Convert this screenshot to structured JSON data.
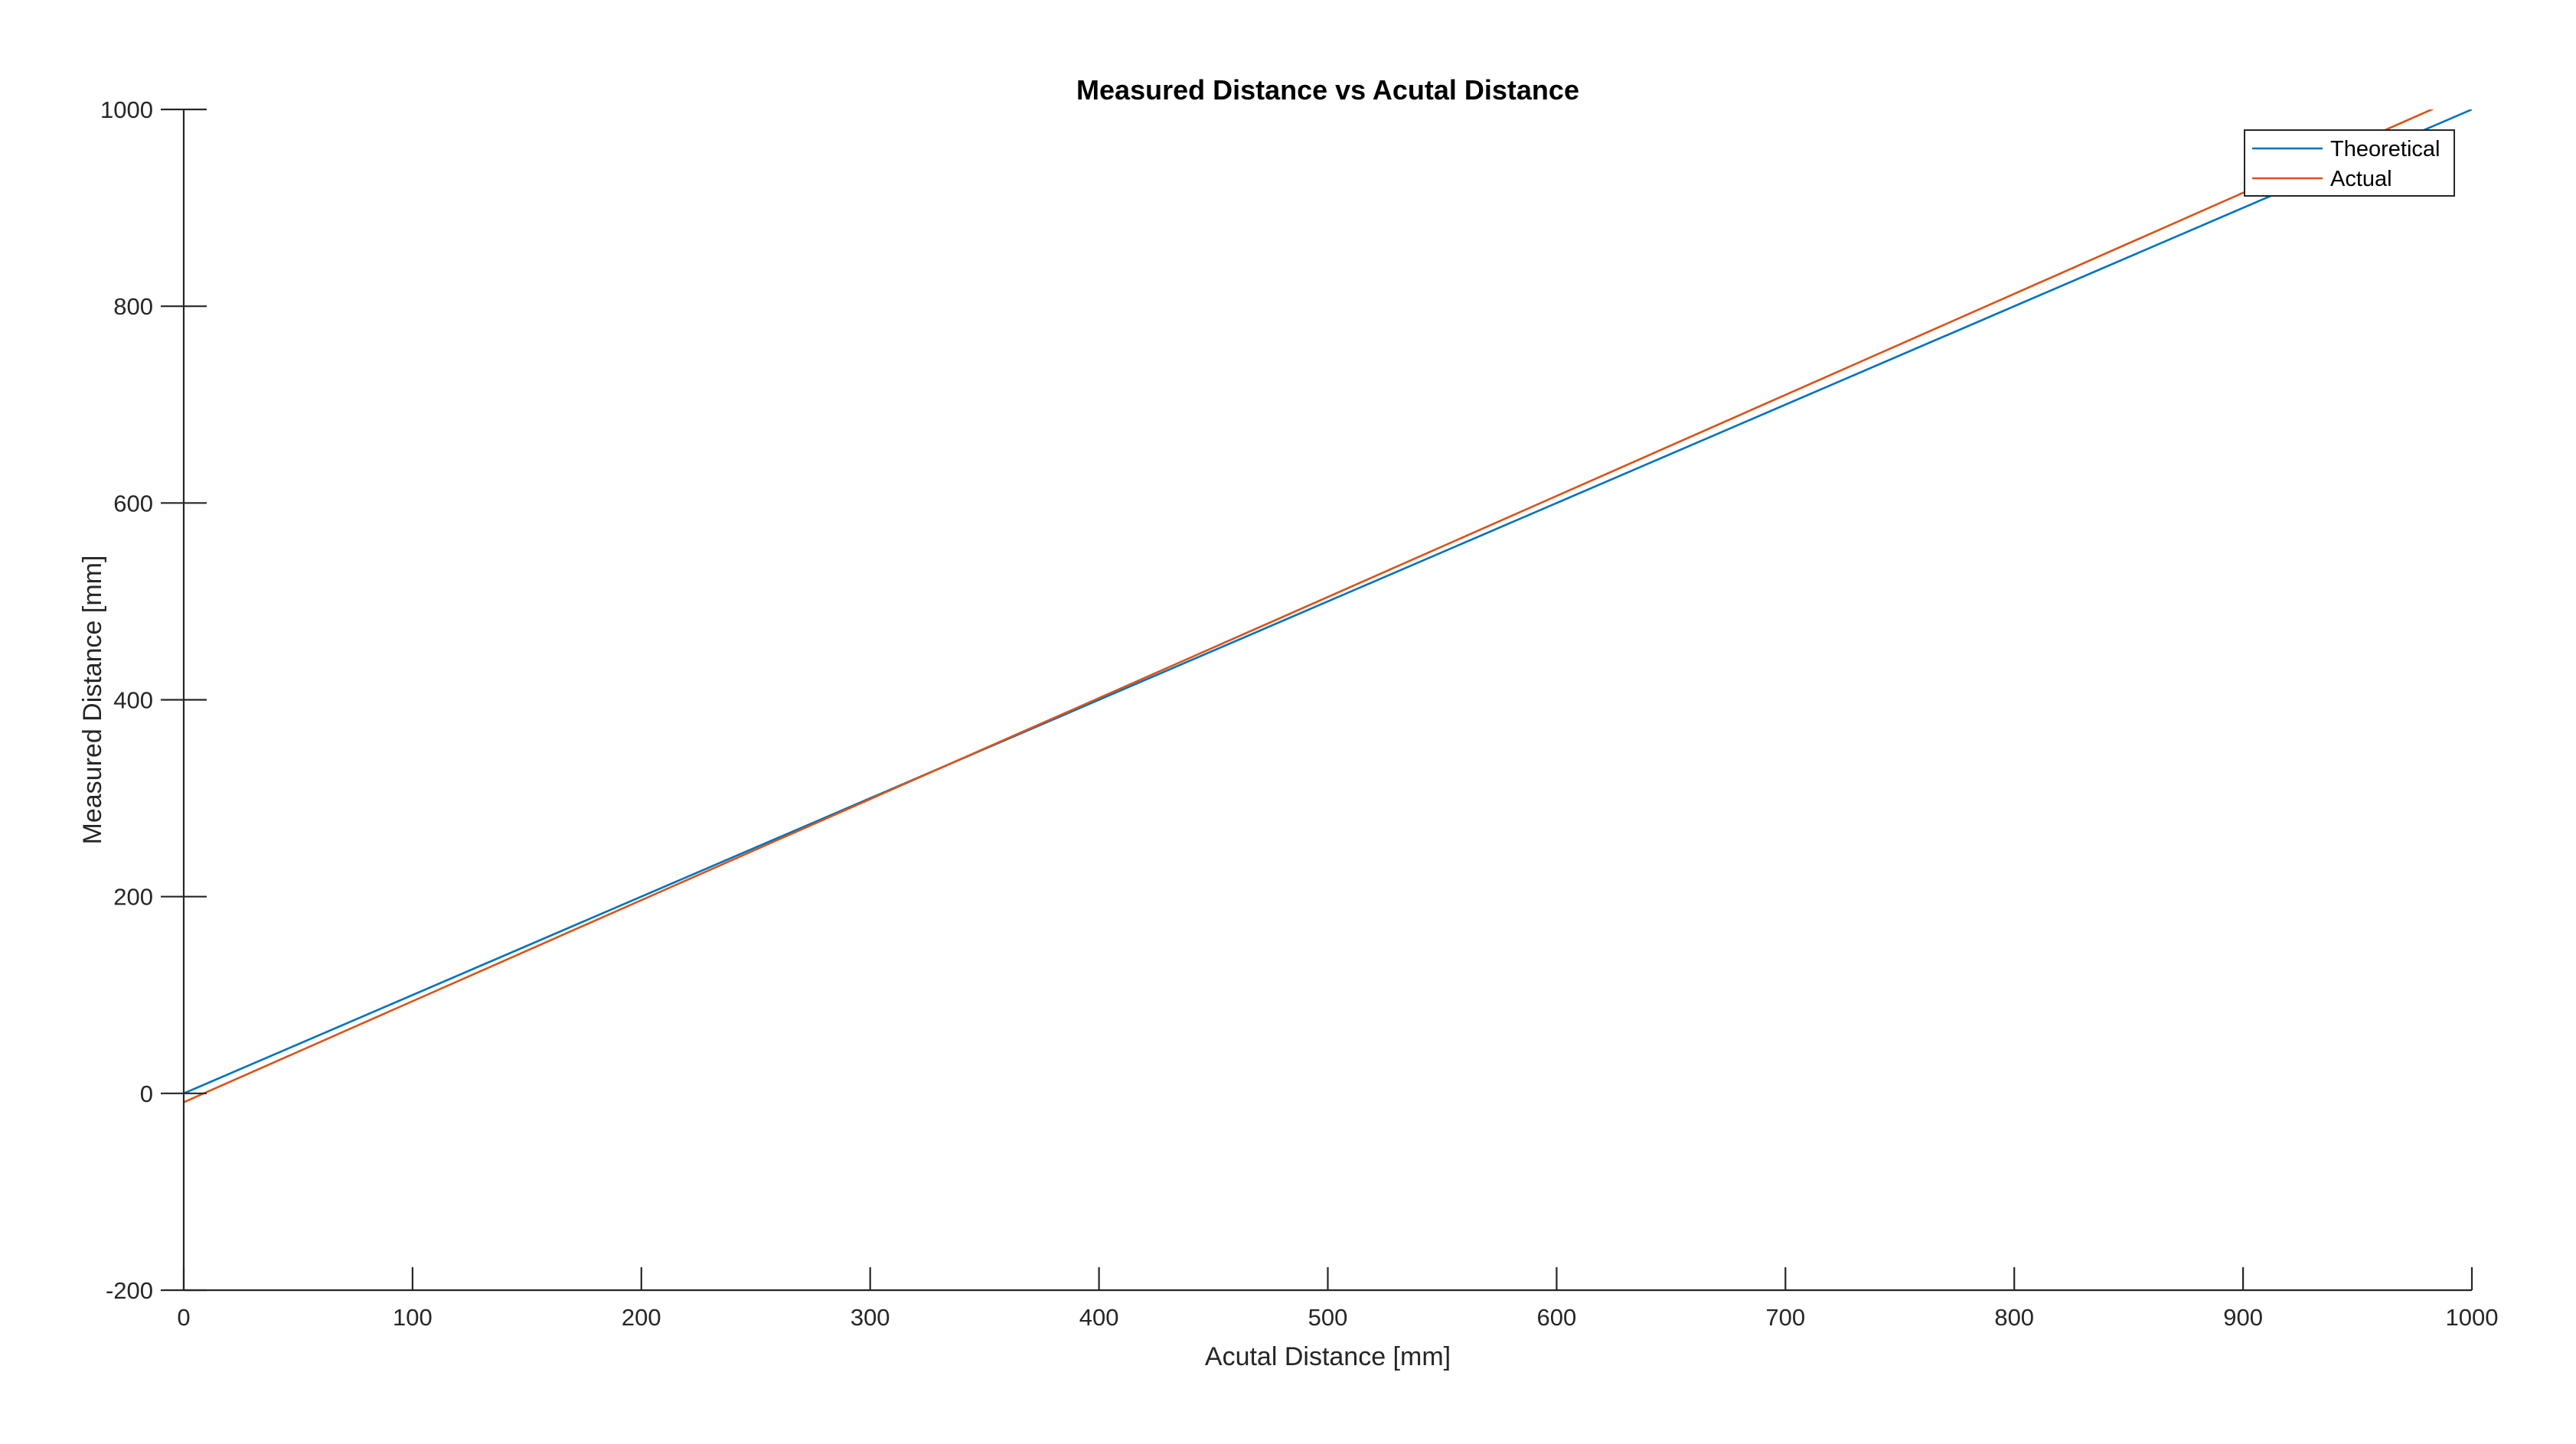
{
  "chart_data": {
    "type": "line",
    "title": "Measured Distance vs Acutal Distance",
    "xlabel": "Acutal Distance [mm]",
    "ylabel": "Measured Distance [mm]",
    "xlim": [
      0,
      1000
    ],
    "ylim": [
      -200,
      1000
    ],
    "xticks": [
      0,
      100,
      200,
      300,
      400,
      500,
      600,
      700,
      800,
      900,
      1000
    ],
    "yticks": [
      -200,
      0,
      200,
      400,
      600,
      800,
      1000
    ],
    "grid": false,
    "legend_position": "top-right",
    "series": [
      {
        "name": "Theoretical",
        "color": "#0072BD",
        "x": [
          0,
          1000
        ],
        "y": [
          0,
          1000
        ]
      },
      {
        "name": "Actual",
        "color": "#D95319",
        "x": [
          0,
          1000
        ],
        "y": [
          -9,
          1018
        ]
      }
    ]
  }
}
